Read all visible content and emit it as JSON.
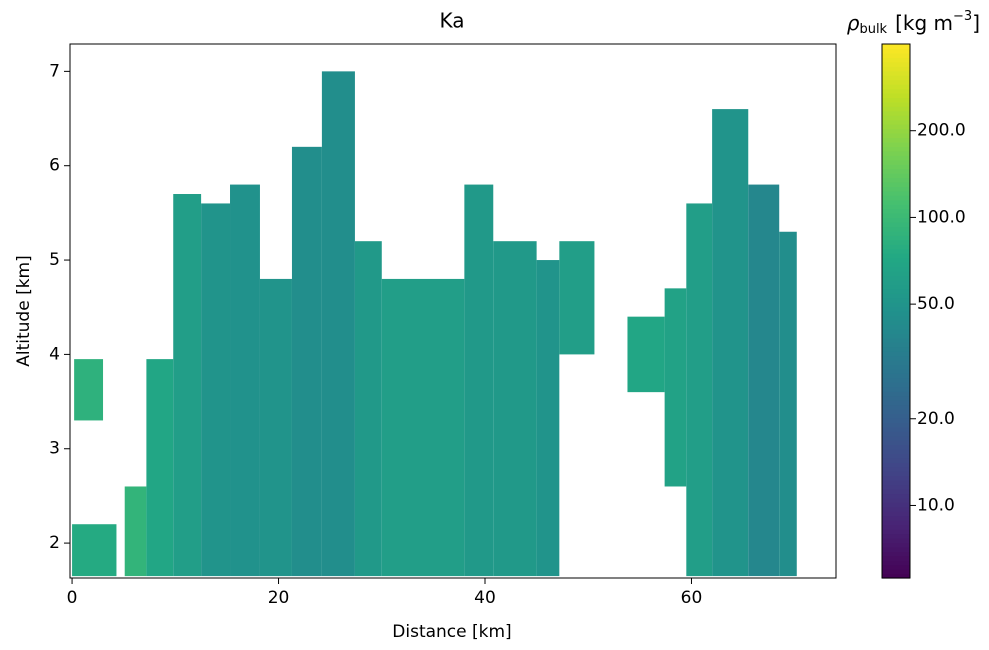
{
  "chart_data": {
    "type": "heatmap",
    "title": "Ka",
    "x_label": "Distance [km]",
    "y_label": "Altitude [km]",
    "xlim": [
      -0.2,
      74
    ],
    "ylim": [
      1.63,
      7.29
    ],
    "xticks": [
      0,
      20,
      40,
      60
    ],
    "yticks": [
      2,
      3,
      4,
      5,
      6,
      7
    ],
    "colormap": "viridis",
    "color_scale": "log",
    "clim": [
      5.6,
      400
    ],
    "colorbar_ticks": [
      {
        "value": 10,
        "label": "10.0"
      },
      {
        "value": 20,
        "label": "20.0"
      },
      {
        "value": 50,
        "label": "50.0"
      },
      {
        "value": 100,
        "label": "100.0"
      },
      {
        "value": 200,
        "label": "200.0"
      }
    ],
    "colorbar_label": {
      "symbol": "ρ",
      "subscript": "bulk",
      "unit": "[kg m",
      "exponent": "−3",
      "close": "]"
    },
    "cells": {
      "x0": [
        0,
        0.2,
        5.1,
        7.2,
        9.8,
        12.5,
        15.3,
        18.2,
        21.3,
        24.2,
        27.4,
        30,
        38,
        40.8,
        45,
        47.2,
        53.8,
        57.4,
        59.5,
        62,
        65.5,
        68.5
      ],
      "x1": [
        4.3,
        3.0,
        7.2,
        9.8,
        12.5,
        15.3,
        18.2,
        21.3,
        24.2,
        27.4,
        30,
        38,
        40.8,
        45,
        47.2,
        50.6,
        57.4,
        59.5,
        62,
        65.5,
        68.5,
        70.2
      ],
      "y0": [
        1.65,
        3.3,
        1.65,
        1.65,
        1.65,
        1.65,
        1.65,
        1.65,
        1.65,
        1.65,
        1.65,
        1.65,
        1.65,
        1.65,
        1.65,
        4.0,
        3.6,
        2.6,
        1.65,
        1.65,
        1.65,
        1.65
      ],
      "y1": [
        2.2,
        3.95,
        2.6,
        3.95,
        5.7,
        5.6,
        5.8,
        4.8,
        6.2,
        7.0,
        5.2,
        4.8,
        5.8,
        5.2,
        5.0,
        5.2,
        4.4,
        4.7,
        5.6,
        6.6,
        5.8,
        5.3
      ],
      "values": [
        75,
        85,
        90,
        70,
        60,
        50,
        48,
        50,
        45,
        45,
        55,
        60,
        55,
        55,
        50,
        60,
        70,
        65,
        60,
        50,
        40,
        45
      ]
    }
  }
}
